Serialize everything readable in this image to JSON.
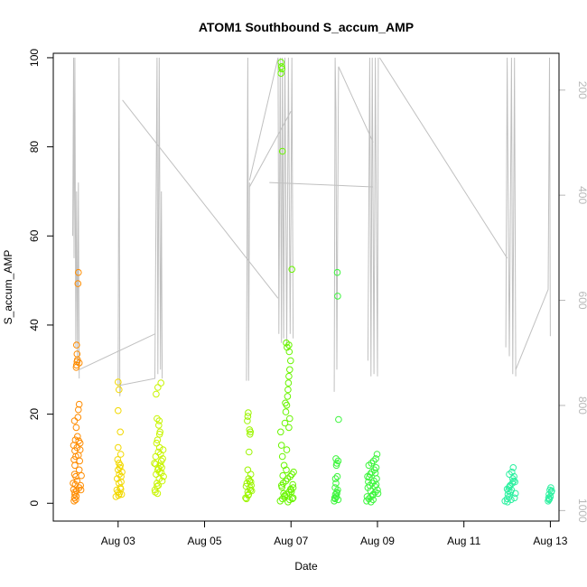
{
  "chart_data": {
    "type": "scatter",
    "title": "ATOM1 Southbound S_accum_AMP",
    "xlabel": "Date",
    "ylabel": "S_accum_AMP",
    "xlim": [
      1.5,
      13.2
    ],
    "ylim": [
      -4,
      101
    ],
    "x_ticks": [
      {
        "value": 3,
        "label": "Aug 03"
      },
      {
        "value": 5,
        "label": "Aug 05"
      },
      {
        "value": 7,
        "label": "Aug 07"
      },
      {
        "value": 9,
        "label": "Aug 09"
      },
      {
        "value": 11,
        "label": "Aug 11"
      },
      {
        "value": 13,
        "label": "Aug 13"
      }
    ],
    "y_ticks": [
      0,
      20,
      40,
      60,
      80,
      100
    ],
    "y2_range": [
      1020,
      130
    ],
    "y2_ticks": [
      200,
      400,
      600,
      800,
      1000
    ],
    "point_colors": [
      "#ff8c00",
      "#f2d800",
      "#c8f500",
      "#9cf500",
      "#69f500",
      "#3cf53c",
      "#2cf0a0"
    ],
    "points": [
      [
        1.98,
        0.5,
        0
      ],
      [
        1.99,
        1.2,
        0
      ],
      [
        2.0,
        2.0,
        0
      ],
      [
        1.97,
        3.1,
        0
      ],
      [
        2.01,
        4.2,
        0
      ],
      [
        2.02,
        6.0,
        0
      ],
      [
        1.99,
        6.5,
        0
      ],
      [
        2.03,
        1.6,
        0
      ],
      [
        2.04,
        2.8,
        0
      ],
      [
        2.05,
        5.0,
        0
      ],
      [
        2.0,
        8.5,
        0
      ],
      [
        1.98,
        9.8,
        0
      ],
      [
        2.02,
        10.5,
        0
      ],
      [
        2.0,
        11.8,
        0
      ],
      [
        2.05,
        12.5,
        0
      ],
      [
        1.97,
        13.0,
        0
      ],
      [
        2.01,
        14.2,
        0
      ],
      [
        2.06,
        15.0,
        0
      ],
      [
        2.03,
        17.0,
        0
      ],
      [
        1.99,
        18.5,
        0
      ],
      [
        2.07,
        19.3,
        0
      ],
      [
        2.1,
        22.2,
        0
      ],
      [
        2.08,
        21.0,
        0
      ],
      [
        2.12,
        12.0,
        0
      ],
      [
        2.09,
        14.0,
        0
      ],
      [
        2.11,
        9.5,
        0
      ],
      [
        2.13,
        4.0,
        0
      ],
      [
        2.1,
        7.5,
        0
      ],
      [
        2.14,
        3.0,
        0
      ],
      [
        2.08,
        10.8,
        0
      ],
      [
        2.04,
        31.0,
        0
      ],
      [
        2.05,
        31.8,
        0
      ],
      [
        2.06,
        32.2,
        0
      ],
      [
        2.05,
        33.5,
        0
      ],
      [
        2.04,
        35.5,
        0
      ],
      [
        2.07,
        49.3,
        0
      ],
      [
        2.08,
        51.8,
        0
      ],
      [
        2.03,
        30.5,
        0
      ],
      [
        2.1,
        31.5,
        0
      ],
      [
        2.02,
        0.8,
        0
      ],
      [
        2.0,
        2.5,
        0
      ],
      [
        2.1,
        3.5,
        0
      ],
      [
        2.12,
        13.5,
        0
      ],
      [
        1.96,
        4.5,
        0
      ],
      [
        2.15,
        6.2,
        0
      ],
      [
        2.95,
        1.5,
        1
      ],
      [
        3.0,
        2.5,
        1
      ],
      [
        3.05,
        3.5,
        1
      ],
      [
        3.02,
        4.5,
        1
      ],
      [
        2.98,
        5.5,
        1
      ],
      [
        3.03,
        6.5,
        1
      ],
      [
        3.0,
        7.5,
        1
      ],
      [
        3.05,
        8.5,
        1
      ],
      [
        3.02,
        9.0,
        1
      ],
      [
        3.06,
        11.0,
        1
      ],
      [
        3.0,
        12.5,
        1
      ],
      [
        3.05,
        16.0,
        1
      ],
      [
        3.0,
        20.8,
        1
      ],
      [
        3.02,
        25.5,
        1
      ],
      [
        3.0,
        27.2,
        1
      ],
      [
        3.08,
        2.0,
        1
      ],
      [
        2.97,
        3.0,
        1
      ],
      [
        3.07,
        6.0,
        1
      ],
      [
        3.04,
        8.0,
        1
      ],
      [
        3.01,
        1.8,
        1
      ],
      [
        3.07,
        4.8,
        1
      ],
      [
        2.99,
        9.8,
        1
      ],
      [
        3.06,
        3.2,
        1
      ],
      [
        3.03,
        2.2,
        1
      ],
      [
        3.09,
        7.0,
        1
      ],
      [
        3.85,
        3.0,
        2
      ],
      [
        3.9,
        4.5,
        2
      ],
      [
        3.95,
        5.5,
        2
      ],
      [
        3.88,
        6.5,
        2
      ],
      [
        3.92,
        7.5,
        2
      ],
      [
        3.98,
        8.5,
        2
      ],
      [
        4.0,
        9.5,
        2
      ],
      [
        3.87,
        10.5,
        2
      ],
      [
        3.93,
        11.5,
        2
      ],
      [
        3.96,
        12.5,
        2
      ],
      [
        3.89,
        13.5,
        2
      ],
      [
        3.91,
        14.2,
        2
      ],
      [
        3.97,
        16.0,
        2
      ],
      [
        3.94,
        17.5,
        2
      ],
      [
        3.95,
        18.5,
        2
      ],
      [
        3.88,
        24.5,
        2
      ],
      [
        3.92,
        26.0,
        2
      ],
      [
        3.99,
        27.0,
        2
      ],
      [
        3.86,
        2.5,
        2
      ],
      [
        4.02,
        5.0,
        2
      ],
      [
        4.05,
        6.0,
        2
      ],
      [
        3.9,
        3.8,
        2
      ],
      [
        3.96,
        7.0,
        2
      ],
      [
        4.01,
        8.0,
        2
      ],
      [
        3.84,
        9.0,
        2
      ],
      [
        3.93,
        4.0,
        2
      ],
      [
        4.03,
        10.0,
        2
      ],
      [
        3.98,
        11.0,
        2
      ],
      [
        3.91,
        2.2,
        2
      ],
      [
        4.04,
        12.0,
        2
      ],
      [
        3.9,
        19.0,
        2
      ],
      [
        3.96,
        15.5,
        2
      ],
      [
        4.0,
        6.8,
        2
      ],
      [
        3.87,
        8.8,
        2
      ],
      [
        3.94,
        7.8,
        2
      ],
      [
        5.95,
        1.2,
        3
      ],
      [
        6.0,
        2.5,
        3
      ],
      [
        6.05,
        3.5,
        3
      ],
      [
        5.98,
        4.5,
        3
      ],
      [
        6.02,
        5.5,
        3
      ],
      [
        6.07,
        6.5,
        3
      ],
      [
        6.0,
        7.5,
        3
      ],
      [
        6.03,
        11.5,
        3
      ],
      [
        6.05,
        15.5,
        3
      ],
      [
        6.04,
        16.5,
        3
      ],
      [
        5.99,
        18.5,
        3
      ],
      [
        6.0,
        19.5,
        3
      ],
      [
        6.01,
        20.3,
        3
      ],
      [
        6.06,
        3.0,
        3
      ],
      [
        5.97,
        1.0,
        3
      ],
      [
        6.08,
        4.0,
        3
      ],
      [
        6.02,
        2.0,
        3
      ],
      [
        6.04,
        5.0,
        3
      ],
      [
        6.06,
        16.0,
        3
      ],
      [
        5.96,
        3.8,
        3
      ],
      [
        6.09,
        2.8,
        3
      ],
      [
        6.01,
        1.8,
        3
      ],
      [
        6.07,
        4.8,
        3
      ],
      [
        6.75,
        0.5,
        4
      ],
      [
        6.8,
        1.0,
        4
      ],
      [
        6.85,
        1.5,
        4
      ],
      [
        6.9,
        2.0,
        4
      ],
      [
        6.95,
        2.5,
        4
      ],
      [
        7.0,
        3.0,
        4
      ],
      [
        7.05,
        3.5,
        4
      ],
      [
        6.78,
        4.0,
        4
      ],
      [
        6.82,
        4.5,
        4
      ],
      [
        6.88,
        5.0,
        4
      ],
      [
        6.92,
        5.5,
        4
      ],
      [
        6.98,
        6.0,
        4
      ],
      [
        7.02,
        6.5,
        4
      ],
      [
        7.06,
        7.0,
        4
      ],
      [
        6.84,
        8.5,
        4
      ],
      [
        6.8,
        10.5,
        4
      ],
      [
        6.78,
        13.0,
        4
      ],
      [
        6.76,
        16.0,
        4
      ],
      [
        6.86,
        18.0,
        4
      ],
      [
        6.88,
        20.5,
        4
      ],
      [
        6.9,
        22.0,
        4
      ],
      [
        6.92,
        24.0,
        4
      ],
      [
        6.93,
        25.5,
        4
      ],
      [
        6.94,
        27.0,
        4
      ],
      [
        6.95,
        28.5,
        4
      ],
      [
        6.97,
        30.0,
        4
      ],
      [
        6.99,
        32.0,
        4
      ],
      [
        6.96,
        34.0,
        4
      ],
      [
        6.91,
        35.0,
        4
      ],
      [
        6.89,
        36.0,
        4
      ],
      [
        6.87,
        22.5,
        4
      ],
      [
        6.95,
        17.0,
        4
      ],
      [
        6.8,
        79.0,
        4
      ],
      [
        6.77,
        96.5,
        4
      ],
      [
        6.79,
        97.5,
        4
      ],
      [
        6.78,
        98.0,
        4
      ],
      [
        6.77,
        99.0,
        4
      ],
      [
        6.95,
        35.5,
        4
      ],
      [
        7.02,
        52.5,
        4
      ],
      [
        7.05,
        1.2,
        4
      ],
      [
        6.83,
        2.2,
        4
      ],
      [
        6.97,
        0.8,
        4
      ],
      [
        7.04,
        4.2,
        4
      ],
      [
        6.81,
        6.2,
        4
      ],
      [
        6.99,
        3.2,
        4
      ],
      [
        6.86,
        1.8,
        4
      ],
      [
        7.01,
        2.6,
        4
      ],
      [
        6.93,
        0.3,
        4
      ],
      [
        6.79,
        3.6,
        4
      ],
      [
        6.89,
        7.5,
        4
      ],
      [
        6.97,
        19.0,
        4
      ],
      [
        6.9,
        12.0,
        4
      ],
      [
        7.03,
        1.0,
        4
      ],
      [
        8.0,
        0.5,
        5
      ],
      [
        8.02,
        1.0,
        5
      ],
      [
        8.05,
        1.5,
        5
      ],
      [
        8.03,
        2.0,
        5
      ],
      [
        8.06,
        2.5,
        5
      ],
      [
        8.08,
        3.0,
        5
      ],
      [
        8.04,
        4.5,
        5
      ],
      [
        8.07,
        6.0,
        5
      ],
      [
        8.05,
        8.5,
        5
      ],
      [
        8.09,
        9.5,
        5
      ],
      [
        8.04,
        10.0,
        5
      ],
      [
        8.1,
        18.8,
        5
      ],
      [
        8.08,
        46.5,
        5
      ],
      [
        8.07,
        51.8,
        5
      ],
      [
        8.01,
        1.2,
        5
      ],
      [
        8.06,
        2.2,
        5
      ],
      [
        8.02,
        3.5,
        5
      ],
      [
        8.09,
        0.8,
        5
      ],
      [
        8.03,
        5.5,
        5
      ],
      [
        8.06,
        9.0,
        5
      ],
      [
        8.75,
        0.5,
        5
      ],
      [
        8.8,
        1.0,
        5
      ],
      [
        8.85,
        1.5,
        5
      ],
      [
        8.9,
        2.0,
        5
      ],
      [
        8.95,
        2.5,
        5
      ],
      [
        9.0,
        3.0,
        5
      ],
      [
        8.78,
        3.5,
        5
      ],
      [
        8.82,
        4.0,
        5
      ],
      [
        8.88,
        4.5,
        5
      ],
      [
        8.92,
        5.0,
        5
      ],
      [
        8.98,
        5.5,
        5
      ],
      [
        8.77,
        6.0,
        5
      ],
      [
        8.83,
        6.5,
        5
      ],
      [
        8.87,
        7.0,
        5
      ],
      [
        8.93,
        7.5,
        5
      ],
      [
        8.97,
        8.0,
        5
      ],
      [
        8.8,
        8.5,
        5
      ],
      [
        8.86,
        9.0,
        5
      ],
      [
        8.91,
        9.5,
        5
      ],
      [
        8.96,
        10.0,
        5
      ],
      [
        8.99,
        11.0,
        5
      ],
      [
        8.84,
        2.8,
        5
      ],
      [
        8.89,
        1.8,
        5
      ],
      [
        8.94,
        3.8,
        5
      ],
      [
        8.79,
        4.8,
        5
      ],
      [
        8.85,
        0.3,
        5
      ],
      [
        8.95,
        6.8,
        5
      ],
      [
        9.01,
        2.2,
        5
      ],
      [
        8.81,
        5.8,
        5
      ],
      [
        8.9,
        0.8,
        5
      ],
      [
        8.76,
        1.5,
        5
      ],
      [
        8.97,
        4.2,
        5
      ],
      [
        11.95,
        0.5,
        6
      ],
      [
        12.0,
        1.0,
        6
      ],
      [
        12.05,
        1.5,
        6
      ],
      [
        12.02,
        2.0,
        6
      ],
      [
        12.08,
        2.5,
        6
      ],
      [
        12.1,
        3.0,
        6
      ],
      [
        12.04,
        3.5,
        6
      ],
      [
        12.07,
        4.0,
        6
      ],
      [
        12.12,
        4.5,
        6
      ],
      [
        12.15,
        5.0,
        6
      ],
      [
        12.13,
        5.5,
        6
      ],
      [
        12.16,
        6.0,
        6
      ],
      [
        12.11,
        7.0,
        6
      ],
      [
        12.14,
        8.0,
        6
      ],
      [
        12.17,
        1.2,
        6
      ],
      [
        12.09,
        0.8,
        6
      ],
      [
        12.03,
        2.8,
        6
      ],
      [
        12.06,
        3.8,
        6
      ],
      [
        12.18,
        4.8,
        6
      ],
      [
        12.01,
        0.3,
        6
      ],
      [
        12.05,
        6.5,
        6
      ],
      [
        12.19,
        2.2,
        6
      ],
      [
        12.0,
        3.2,
        6
      ],
      [
        12.95,
        0.5,
        6
      ],
      [
        12.98,
        1.0,
        6
      ],
      [
        13.0,
        1.5,
        6
      ],
      [
        12.97,
        2.0,
        6
      ],
      [
        13.02,
        2.5,
        6
      ],
      [
        12.99,
        3.0,
        6
      ],
      [
        13.01,
        3.5,
        6
      ],
      [
        12.96,
        1.2,
        6
      ],
      [
        13.03,
        2.8,
        6
      ],
      [
        12.97,
        0.8,
        6
      ]
    ],
    "gray_line_segments": [
      [
        [
          1.95,
          60
        ],
        [
          1.97,
          100
        ],
        [
          1.98,
          55
        ],
        [
          2.0,
          100
        ],
        [
          2.02,
          35
        ],
        [
          2.04,
          70
        ],
        [
          2.06,
          31
        ],
        [
          2.08,
          72
        ],
        [
          2.1,
          28
        ]
      ],
      [
        [
          2.1,
          30
        ],
        [
          3.85,
          38
        ]
      ],
      [
        [
          3.0,
          26
        ],
        [
          3.02,
          100
        ],
        [
          3.04,
          24
        ],
        [
          3.06,
          27
        ]
      ],
      [
        [
          3.06,
          26.5
        ],
        [
          3.85,
          28
        ],
        [
          3.9,
          100
        ],
        [
          3.92,
          29
        ],
        [
          3.95,
          100
        ],
        [
          3.98,
          30
        ],
        [
          4.0,
          70
        ],
        [
          4.02,
          28
        ]
      ],
      [
        [
          3.1,
          90.5
        ],
        [
          6.7,
          46
        ]
      ],
      [
        [
          5.97,
          27.5
        ],
        [
          6.0,
          100
        ],
        [
          6.02,
          27.5
        ],
        [
          6.04,
          72
        ]
      ],
      [
        [
          6.04,
          72.5
        ],
        [
          6.7,
          100
        ],
        [
          6.72,
          38
        ],
        [
          6.75,
          100
        ],
        [
          6.78,
          36
        ],
        [
          6.8,
          100
        ],
        [
          6.83,
          37
        ],
        [
          6.86,
          100
        ],
        [
          6.9,
          35
        ],
        [
          6.94,
          100
        ],
        [
          6.98,
          38
        ],
        [
          7.02,
          100
        ],
        [
          7.05,
          37
        ]
      ],
      [
        [
          6.04,
          71
        ],
        [
          7.0,
          88
        ]
      ],
      [
        [
          6.5,
          72
        ],
        [
          8.9,
          71
        ]
      ],
      [
        [
          8.0,
          25
        ],
        [
          8.02,
          100
        ],
        [
          8.04,
          88
        ],
        [
          8.06,
          30
        ],
        [
          8.1,
          98
        ],
        [
          8.9,
          81
        ]
      ],
      [
        [
          8.78,
          32
        ],
        [
          8.82,
          100
        ],
        [
          8.85,
          28.5
        ],
        [
          8.88,
          100
        ],
        [
          8.92,
          29
        ],
        [
          8.95,
          100
        ],
        [
          9.0,
          28.5
        ],
        [
          9.02,
          100
        ]
      ],
      [
        [
          9.05,
          100
        ],
        [
          12.0,
          55
        ]
      ],
      [
        [
          11.97,
          35
        ],
        [
          12.0,
          100
        ],
        [
          12.05,
          33
        ],
        [
          12.1,
          100
        ],
        [
          12.13,
          29
        ],
        [
          12.17,
          100
        ],
        [
          12.2,
          28.5
        ]
      ],
      [
        [
          12.2,
          30
        ],
        [
          12.95,
          48
        ],
        [
          12.98,
          100
        ],
        [
          13.0,
          37.5
        ]
      ]
    ]
  }
}
